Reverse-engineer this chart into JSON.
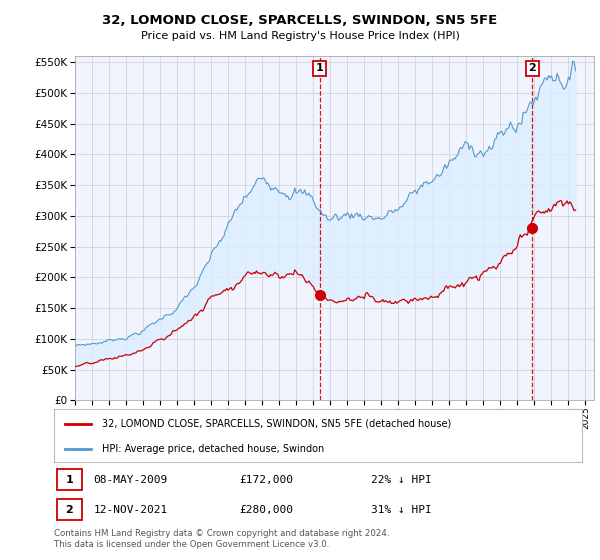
{
  "title": "32, LOMOND CLOSE, SPARCELLS, SWINDON, SN5 5FE",
  "subtitle": "Price paid vs. HM Land Registry's House Price Index (HPI)",
  "ylim": [
    0,
    560000
  ],
  "yticks": [
    0,
    50000,
    100000,
    150000,
    200000,
    250000,
    300000,
    350000,
    400000,
    450000,
    500000,
    550000
  ],
  "sale1_date": "08-MAY-2009",
  "sale1_price": 172000,
  "sale1_x": 2009.37,
  "sale2_date": "12-NOV-2021",
  "sale2_price": 280000,
  "sale2_x": 2021.87,
  "legend_house": "32, LOMOND CLOSE, SPARCELLS, SWINDON, SN5 5FE (detached house)",
  "legend_hpi": "HPI: Average price, detached house, Swindon",
  "footnote": "Contains HM Land Registry data © Crown copyright and database right 2024.\nThis data is licensed under the Open Government Licence v3.0.",
  "house_color": "#cc0000",
  "hpi_color": "#5599cc",
  "fill_color": "#ddeeff",
  "vline_color": "#cc0000",
  "background_color": "#ffffff",
  "grid_color": "#cccccc",
  "chart_bg": "#f0f4ff"
}
